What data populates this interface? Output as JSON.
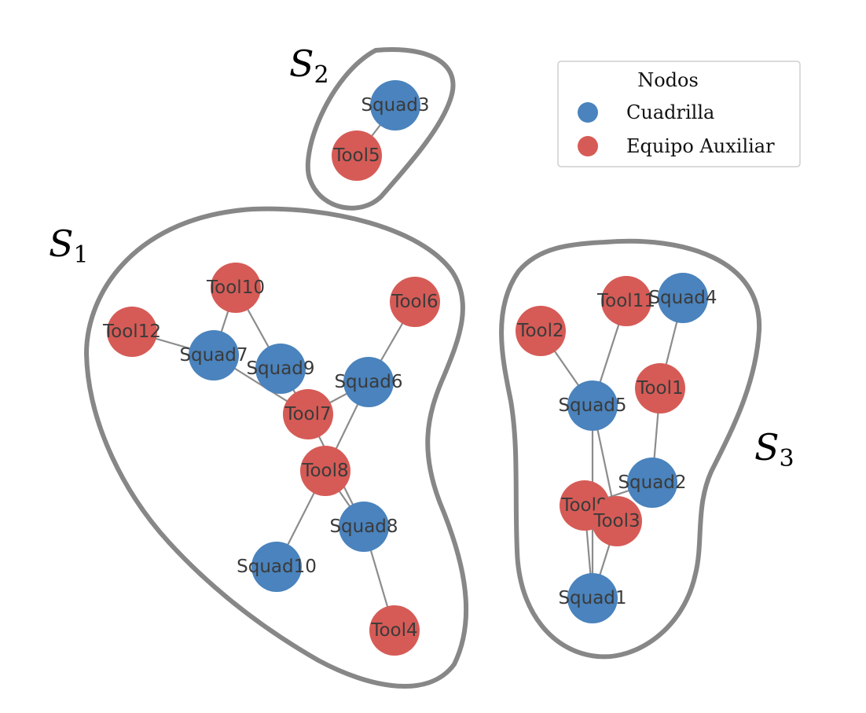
{
  "colors": {
    "squad": "#4a83bd",
    "tool": "#d65b56",
    "hull": "#878787",
    "edge": "#8c8c8c"
  },
  "legend": {
    "title": "Nodos",
    "items": [
      {
        "key": "squad",
        "label": "Cuadrilla"
      },
      {
        "key": "tool",
        "label": "Equipo Auxiliar"
      }
    ]
  },
  "sets": [
    {
      "id": "S1",
      "symbol": "S",
      "sub": "1"
    },
    {
      "id": "S2",
      "symbol": "S",
      "sub": "2"
    },
    {
      "id": "S3",
      "symbol": "S",
      "sub": "3"
    }
  ],
  "nodes": [
    {
      "id": "Squad3",
      "type": "squad",
      "set": "S2"
    },
    {
      "id": "Tool5",
      "type": "tool",
      "set": "S2"
    },
    {
      "id": "Tool10",
      "type": "tool",
      "set": "S1"
    },
    {
      "id": "Tool12",
      "type": "tool",
      "set": "S1"
    },
    {
      "id": "Squad7",
      "type": "squad",
      "set": "S1"
    },
    {
      "id": "Squad9",
      "type": "squad",
      "set": "S1"
    },
    {
      "id": "Tool6",
      "type": "tool",
      "set": "S1"
    },
    {
      "id": "Squad6",
      "type": "squad",
      "set": "S1"
    },
    {
      "id": "Tool7",
      "type": "tool",
      "set": "S1"
    },
    {
      "id": "Tool8",
      "type": "tool",
      "set": "S1"
    },
    {
      "id": "Squad8",
      "type": "squad",
      "set": "S1"
    },
    {
      "id": "Squad10",
      "type": "squad",
      "set": "S1"
    },
    {
      "id": "Tool4",
      "type": "tool",
      "set": "S1"
    },
    {
      "id": "Tool2",
      "type": "tool",
      "set": "S3"
    },
    {
      "id": "Tool11",
      "type": "tool",
      "set": "S3"
    },
    {
      "id": "Squad4",
      "type": "squad",
      "set": "S3"
    },
    {
      "id": "Squad5",
      "type": "squad",
      "set": "S3"
    },
    {
      "id": "Tool1",
      "type": "tool",
      "set": "S3"
    },
    {
      "id": "Squad2",
      "type": "squad",
      "set": "S3"
    },
    {
      "id": "Tool9",
      "type": "tool",
      "set": "S3"
    },
    {
      "id": "Tool3",
      "type": "tool",
      "set": "S3"
    },
    {
      "id": "Squad1",
      "type": "squad",
      "set": "S3"
    }
  ],
  "edges": [
    [
      "Squad3",
      "Tool5"
    ],
    [
      "Tool12",
      "Squad7"
    ],
    [
      "Squad7",
      "Tool10"
    ],
    [
      "Tool10",
      "Squad9"
    ],
    [
      "Squad7",
      "Tool7"
    ],
    [
      "Squad9",
      "Tool7"
    ],
    [
      "Squad6",
      "Tool7"
    ],
    [
      "Tool6",
      "Squad6"
    ],
    [
      "Squad6",
      "Tool8"
    ],
    [
      "Tool7",
      "Squad8"
    ],
    [
      "Tool8",
      "Squad8"
    ],
    [
      "Tool8",
      "Squad10"
    ],
    [
      "Squad8",
      "Tool4"
    ],
    [
      "Tool2",
      "Squad5"
    ],
    [
      "Tool11",
      "Squad5"
    ],
    [
      "Squad4",
      "Tool1"
    ],
    [
      "Tool1",
      "Squad2"
    ],
    [
      "Squad5",
      "Tool3"
    ],
    [
      "Squad5",
      "Squad1"
    ],
    [
      "Squad2",
      "Tool9"
    ],
    [
      "Tool9",
      "Squad1"
    ],
    [
      "Tool3",
      "Squad1"
    ]
  ]
}
